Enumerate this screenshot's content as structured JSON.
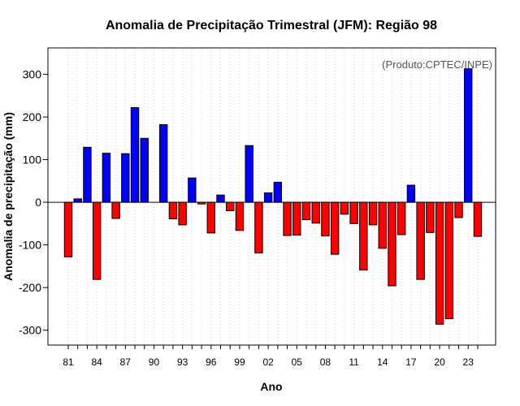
{
  "chart_data": {
    "type": "bar",
    "title": "Anomalia de Precipitação Trimestral (JFM): Região 98",
    "xlabel": "Ano",
    "ylabel": "Anomalia de precipitação (mm)",
    "credit": "(Produto:CPTEC/INPE)",
    "ylim": [
      -335,
      362
    ],
    "y_ticks": [
      -300,
      -200,
      -100,
      0,
      100,
      200,
      300
    ],
    "x_tick_labels": [
      "81",
      "84",
      "87",
      "90",
      "93",
      "96",
      "99",
      "02",
      "05",
      "08",
      "11",
      "14",
      "17",
      "20",
      "23"
    ],
    "positive_color": "#0000ff",
    "negative_color": "#ff0000",
    "categories": [
      "1981",
      "1982",
      "1983",
      "1984",
      "1985",
      "1986",
      "1987",
      "1988",
      "1989",
      "1990",
      "1991",
      "1992",
      "1993",
      "1994",
      "1995",
      "1996",
      "1997",
      "1998",
      "1999",
      "2000",
      "2001",
      "2002",
      "2003",
      "2004",
      "2005",
      "2006",
      "2007",
      "2008",
      "2009",
      "2010",
      "2011",
      "2012",
      "2013",
      "2014",
      "2015",
      "2016",
      "2017",
      "2018",
      "2019",
      "2020",
      "2021",
      "2022",
      "2023",
      "2024"
    ],
    "values": [
      -128,
      8,
      129,
      -181,
      115,
      -38,
      114,
      222,
      150,
      0,
      182,
      -39,
      -53,
      57,
      -4,
      -72,
      17,
      -20,
      -66,
      133,
      -119,
      22,
      47,
      -78,
      -77,
      -41,
      -49,
      -79,
      -122,
      -28,
      -50,
      -159,
      -53,
      -108,
      -196,
      -76,
      40,
      -181,
      -71,
      -286,
      -273,
      -36,
      313,
      -80
    ]
  }
}
